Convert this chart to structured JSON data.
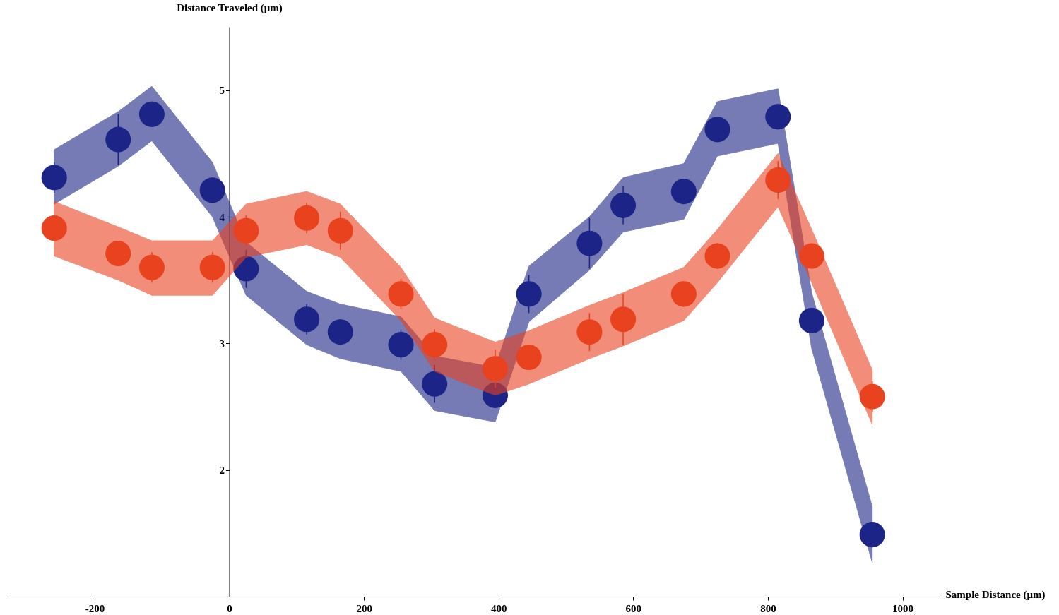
{
  "chart_data": {
    "type": "scatter",
    "xlabel": "Sample Distance (μm)",
    "ylabel": "Distance Traveled (μm)",
    "x": [
      -260,
      -165,
      -115,
      -25,
      25,
      115,
      165,
      255,
      305,
      395,
      445,
      535,
      585,
      675,
      725,
      815,
      865,
      955
    ],
    "series": [
      {
        "color": "#1c2587",
        "values": [
          4.31,
          4.61,
          4.81,
          4.21,
          3.59,
          3.19,
          3.09,
          2.99,
          2.68,
          2.59,
          3.39,
          3.79,
          4.09,
          4.2,
          4.69,
          4.79,
          3.18,
          1.49
        ],
        "errors": [
          0.12,
          0.2,
          0.1,
          0.1,
          0.15,
          0.12,
          0.1,
          0.12,
          0.15,
          0.1,
          0.15,
          0.2,
          0.15,
          0.1,
          0.1,
          0.1,
          0.1,
          0.1
        ],
        "lower": [
          4.1,
          4.4,
          4.6,
          4.0,
          3.38,
          2.99,
          2.88,
          2.78,
          2.47,
          2.38,
          3.17,
          3.58,
          3.88,
          3.98,
          4.48,
          4.58,
          2.96,
          1.27
        ],
        "upper": [
          4.53,
          4.83,
          5.03,
          4.43,
          3.8,
          3.41,
          3.31,
          3.21,
          2.9,
          2.81,
          3.61,
          4.0,
          4.31,
          4.42,
          4.91,
          5.01,
          3.4,
          1.71
        ]
      },
      {
        "color": "#e8421f",
        "values": [
          3.91,
          3.71,
          3.6,
          3.6,
          3.89,
          3.99,
          3.89,
          3.39,
          2.99,
          2.8,
          2.89,
          3.09,
          3.19,
          3.39,
          3.69,
          4.29,
          3.69,
          2.58
        ],
        "errors": [
          0.1,
          0.1,
          0.12,
          0.12,
          0.12,
          0.12,
          0.15,
          0.12,
          0.12,
          0.15,
          0.1,
          0.15,
          0.2,
          0.1,
          0.1,
          0.15,
          0.1,
          0.12
        ],
        "lower": [
          3.69,
          3.5,
          3.38,
          3.38,
          3.68,
          3.78,
          3.68,
          3.18,
          2.78,
          2.59,
          2.68,
          2.88,
          2.98,
          3.18,
          3.48,
          4.08,
          3.48,
          2.36
        ],
        "upper": [
          4.12,
          3.92,
          3.81,
          3.81,
          4.1,
          4.2,
          4.1,
          3.6,
          3.2,
          3.01,
          3.1,
          3.3,
          3.4,
          3.6,
          3.9,
          4.5,
          3.9,
          2.79
        ]
      }
    ],
    "xlim": [
      -330,
      1055
    ],
    "ylim": [
      1.0,
      5.5
    ],
    "xticks": [
      -200,
      0,
      200,
      400,
      600,
      800,
      1000
    ],
    "yticks": [
      2,
      3,
      4,
      5
    ],
    "grid": false,
    "marker": "circle"
  }
}
